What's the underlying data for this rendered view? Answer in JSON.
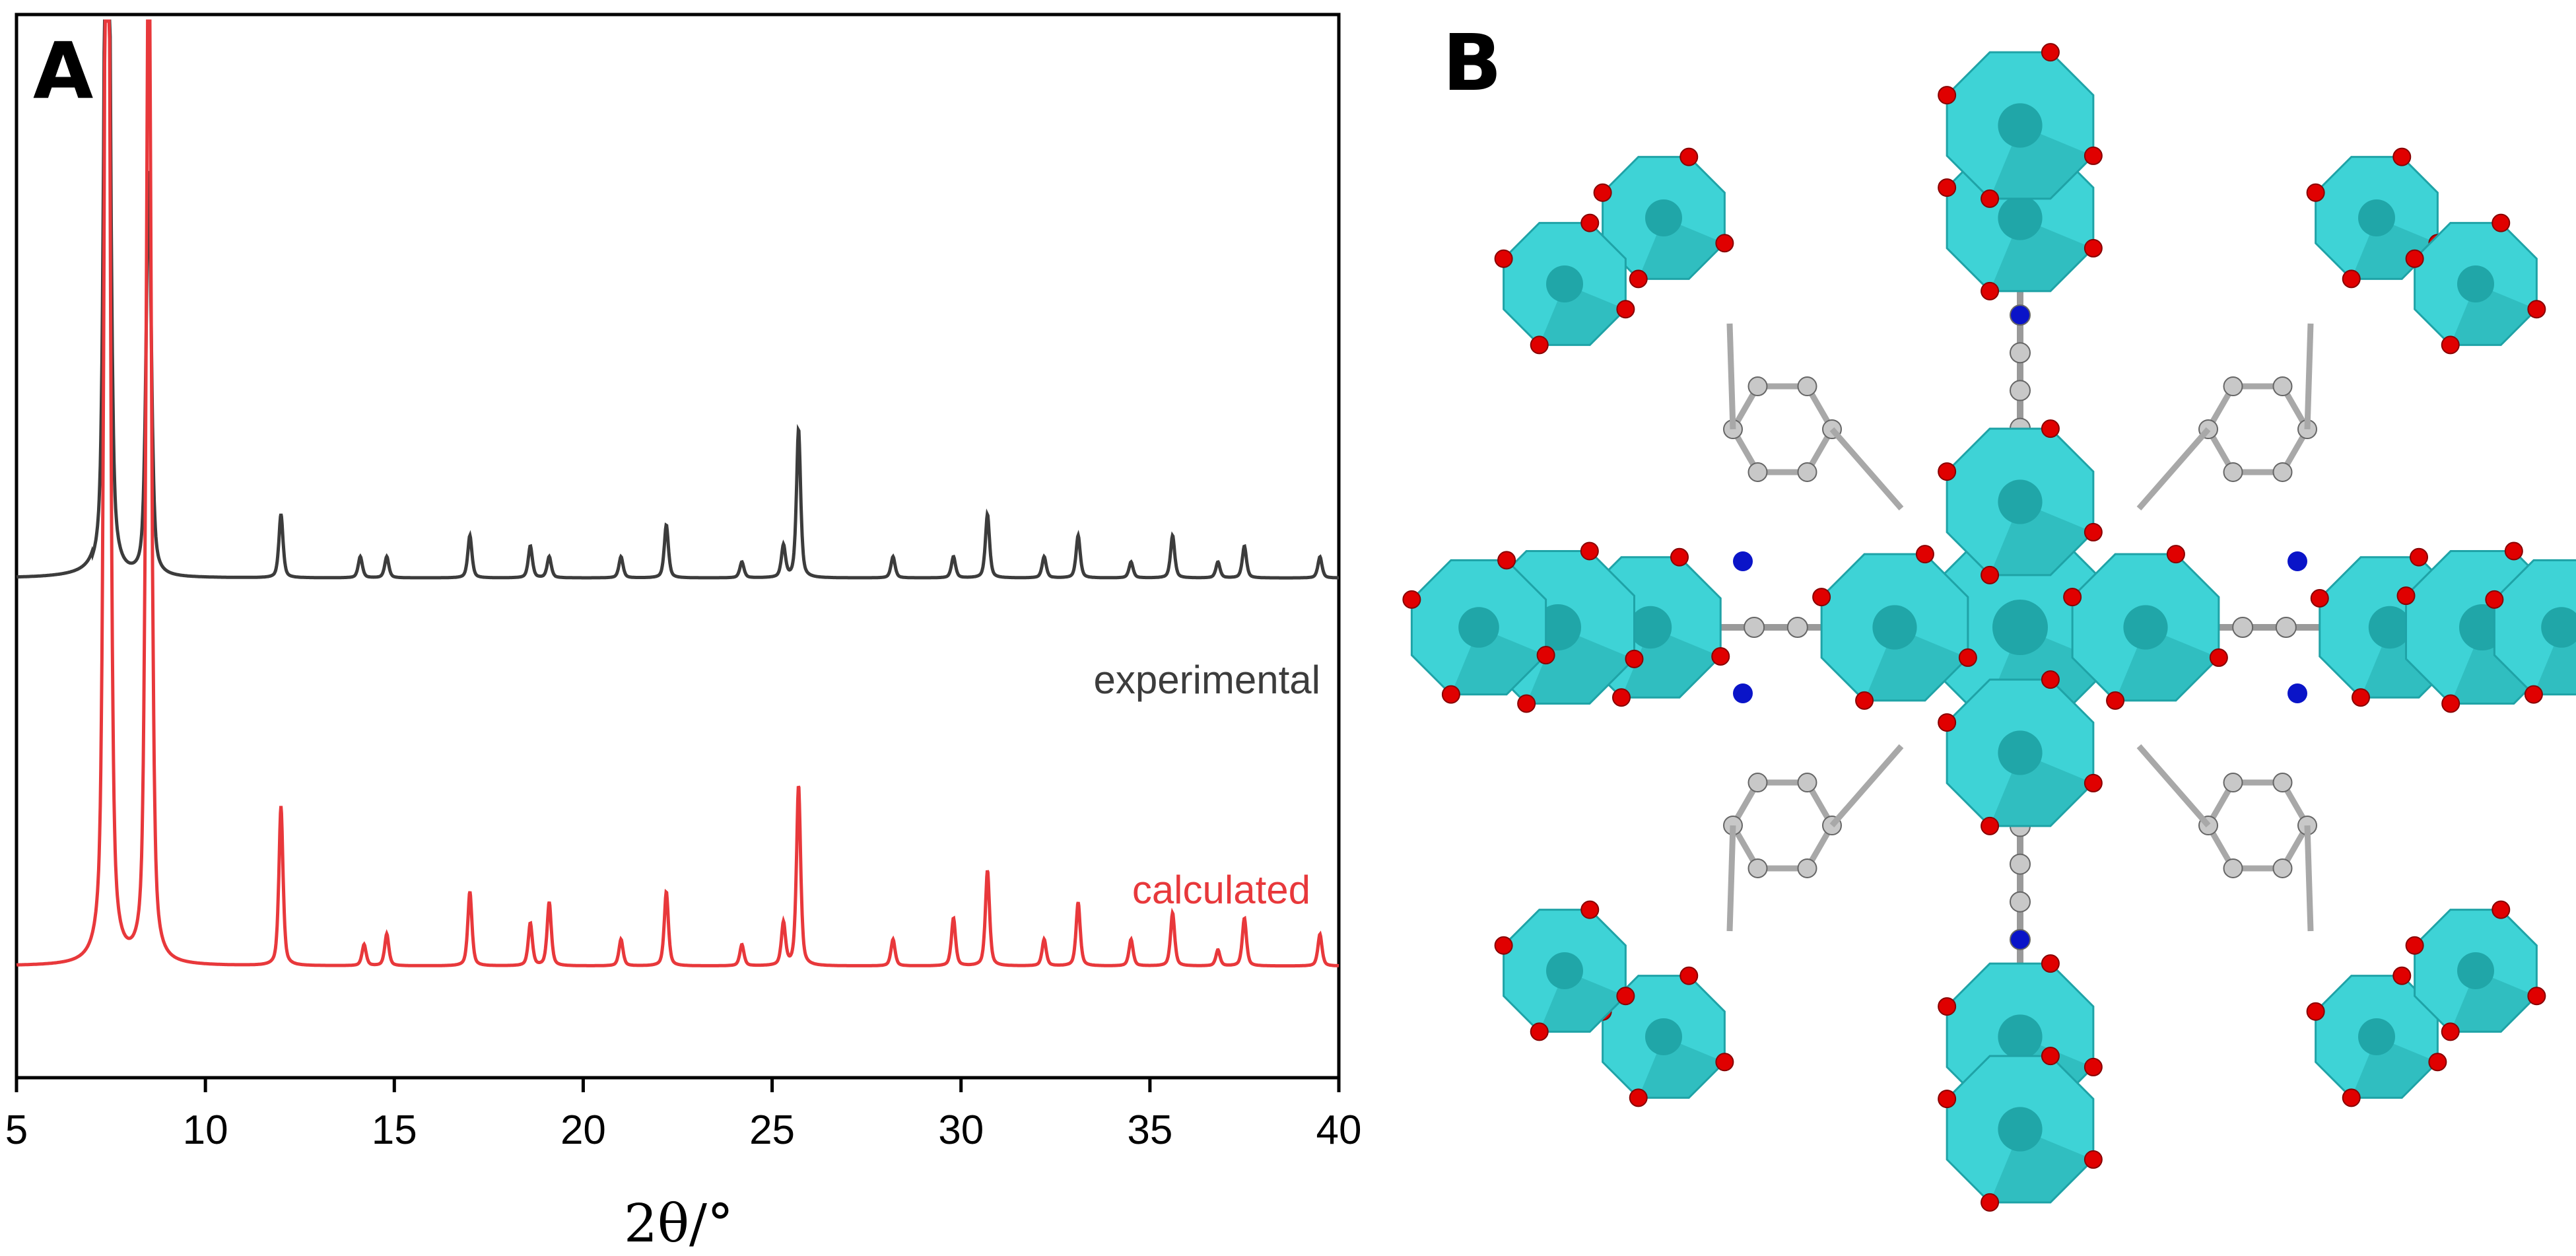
{
  "panels": {
    "left_label": "A",
    "right_label": "B"
  },
  "chart_data": {
    "type": "line",
    "xlabel": "2θ/°",
    "ylabel": "",
    "xlim": [
      5,
      40
    ],
    "x_ticks": [
      "5",
      "10",
      "15",
      "20",
      "25",
      "30",
      "35",
      "40"
    ],
    "y_ticks_shown": false,
    "grid": false,
    "series": [
      {
        "name": "experimental",
        "color": "#3c3c3c",
        "baseline": 0.47,
        "peaks": [
          {
            "x": 7.4,
            "h": 0.99
          },
          {
            "x": 8.5,
            "h": 0.38
          },
          {
            "x": 12.0,
            "h": 0.06
          },
          {
            "x": 14.1,
            "h": 0.02
          },
          {
            "x": 14.8,
            "h": 0.02
          },
          {
            "x": 17.0,
            "h": 0.04
          },
          {
            "x": 18.6,
            "h": 0.03
          },
          {
            "x": 19.1,
            "h": 0.02
          },
          {
            "x": 21.0,
            "h": 0.02
          },
          {
            "x": 22.2,
            "h": 0.05
          },
          {
            "x": 24.2,
            "h": 0.015
          },
          {
            "x": 25.3,
            "h": 0.03
          },
          {
            "x": 25.7,
            "h": 0.14
          },
          {
            "x": 28.2,
            "h": 0.02
          },
          {
            "x": 29.8,
            "h": 0.02
          },
          {
            "x": 30.7,
            "h": 0.06
          },
          {
            "x": 32.2,
            "h": 0.02
          },
          {
            "x": 33.1,
            "h": 0.04
          },
          {
            "x": 34.5,
            "h": 0.015
          },
          {
            "x": 35.6,
            "h": 0.04
          },
          {
            "x": 36.8,
            "h": 0.015
          },
          {
            "x": 37.5,
            "h": 0.03
          },
          {
            "x": 39.5,
            "h": 0.02
          }
        ]
      },
      {
        "name": "calculated",
        "color": "#e8383b",
        "baseline": 0.105,
        "peaks": [
          {
            "x": 7.4,
            "h": 1.4
          },
          {
            "x": 8.5,
            "h": 1.0
          },
          {
            "x": 12.0,
            "h": 0.15
          },
          {
            "x": 14.2,
            "h": 0.02
          },
          {
            "x": 14.8,
            "h": 0.03
          },
          {
            "x": 17.0,
            "h": 0.07
          },
          {
            "x": 18.6,
            "h": 0.04
          },
          {
            "x": 19.1,
            "h": 0.06
          },
          {
            "x": 21.0,
            "h": 0.025
          },
          {
            "x": 22.2,
            "h": 0.07
          },
          {
            "x": 24.2,
            "h": 0.02
          },
          {
            "x": 25.3,
            "h": 0.04
          },
          {
            "x": 25.7,
            "h": 0.17
          },
          {
            "x": 28.2,
            "h": 0.025
          },
          {
            "x": 29.8,
            "h": 0.045
          },
          {
            "x": 30.7,
            "h": 0.09
          },
          {
            "x": 32.2,
            "h": 0.025
          },
          {
            "x": 33.1,
            "h": 0.06
          },
          {
            "x": 34.5,
            "h": 0.025
          },
          {
            "x": 35.6,
            "h": 0.05
          },
          {
            "x": 36.8,
            "h": 0.015
          },
          {
            "x": 37.5,
            "h": 0.045
          },
          {
            "x": 39.5,
            "h": 0.03
          }
        ]
      }
    ]
  },
  "structure_panel": {
    "colors": {
      "polyhedron": "#3ed3d6",
      "polyhedron_dark": "#1fa3a7",
      "oxygen": "#e00000",
      "carbon": "#c8c8c8",
      "nitrogen": "#0a14c8"
    }
  }
}
